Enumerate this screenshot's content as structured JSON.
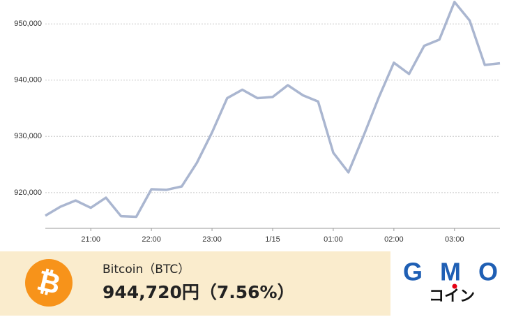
{
  "chart_data": {
    "type": "line",
    "categories": [
      null,
      null,
      null,
      "21:00",
      null,
      null,
      null,
      "22:00",
      null,
      null,
      null,
      "23:00",
      null,
      null,
      null,
      "1/15",
      null,
      null,
      null,
      "01:00",
      null,
      null,
      null,
      "02:00",
      null,
      null,
      null,
      "03:00",
      null,
      null,
      null
    ],
    "values": [
      915900,
      917500,
      918600,
      917300,
      919100,
      915800,
      915700,
      920600,
      920500,
      921100,
      925300,
      930700,
      936800,
      938300,
      936800,
      937000,
      939100,
      937300,
      936200,
      927100,
      923600,
      930100,
      936900,
      943100,
      941100,
      946100,
      947200,
      953900,
      950600,
      942700,
      943000
    ],
    "color": "#aab6d0",
    "ylim": [
      913650,
      954000
    ],
    "yticks": [
      {
        "value": 920000,
        "label": "920,000"
      },
      {
        "value": 930000,
        "label": "930,000"
      },
      {
        "value": 940000,
        "label": "940,000"
      },
      {
        "value": 950000,
        "label": "950,000"
      }
    ],
    "grid": true
  },
  "banner": {
    "name": "Bitcoin（BTC）",
    "price": "944,720円（7.56%）",
    "logo_top": "GMO",
    "logo_bottom": "コイン"
  }
}
